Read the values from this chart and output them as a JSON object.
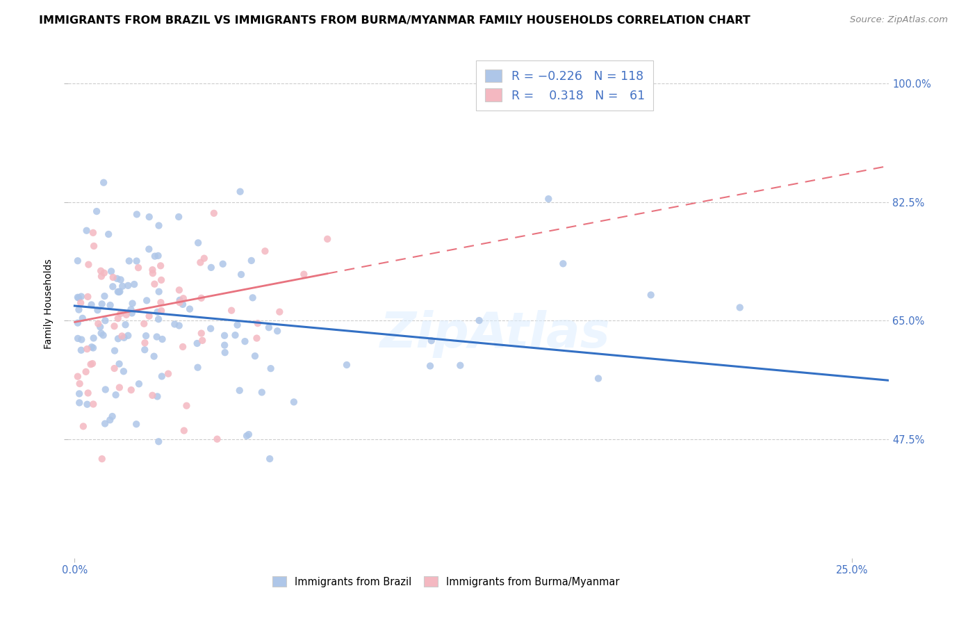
{
  "title": "IMMIGRANTS FROM BRAZIL VS IMMIGRANTS FROM BURMA/MYANMAR FAMILY HOUSEHOLDS CORRELATION CHART",
  "source": "Source: ZipAtlas.com",
  "ylabel": "Family Households",
  "y_ticks": [
    0.475,
    0.65,
    0.825,
    1.0
  ],
  "y_tick_labels": [
    "47.5%",
    "65.0%",
    "82.5%",
    "100.0%"
  ],
  "y_min": 0.3,
  "y_max": 1.05,
  "x_min": -0.002,
  "x_max": 0.262,
  "brazil_R": -0.226,
  "brazil_N": 118,
  "burma_R": 0.318,
  "burma_N": 61,
  "brazil_color": "#aec6e8",
  "burma_color": "#f4b8c1",
  "brazil_line_color": "#3370c4",
  "burma_line_color": "#e8737f",
  "background_color": "#ffffff",
  "grid_color": "#cccccc",
  "axis_color": "#4472c4",
  "watermark": "ZipAtlas",
  "title_fontsize": 11.5,
  "label_fontsize": 10,
  "tick_fontsize": 10.5,
  "source_fontsize": 9.5
}
